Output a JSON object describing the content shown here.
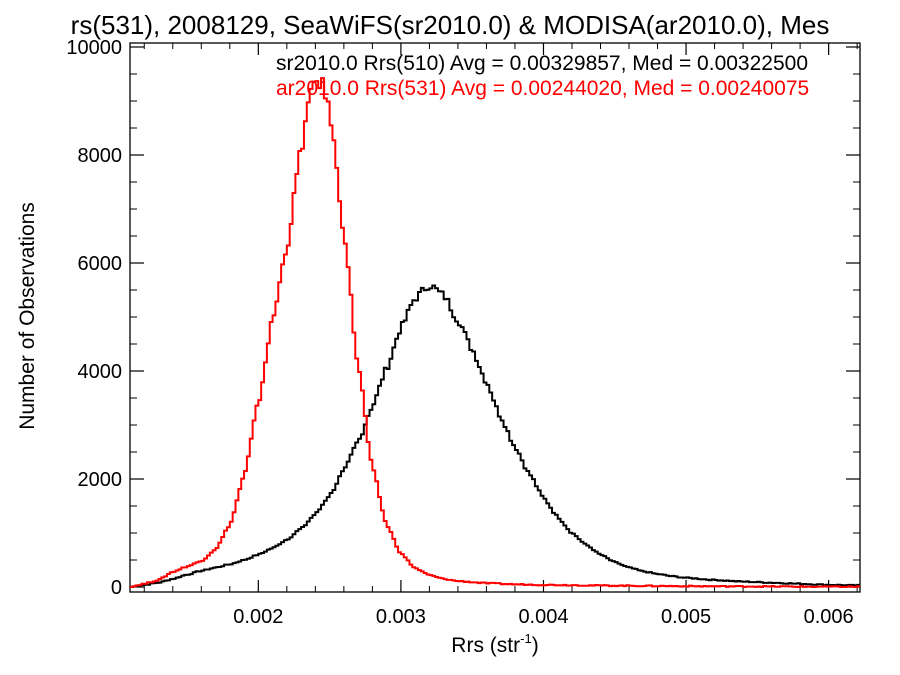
{
  "chart_data": {
    "type": "line",
    "title": "rs(531), 2008129, SeaWiFS(sr2010.0) & MODISA(ar2010.0), Mes",
    "xlabel": "Rrs (str",
    "xlabel_sup": "-1",
    "xlabel_close": ")",
    "ylabel": "Number of Observations",
    "xlim": [
      0.0011,
      0.00622
    ],
    "ylim": [
      0,
      10000
    ],
    "x_ticks": [
      0.002,
      0.003,
      0.004,
      0.005,
      0.006
    ],
    "x_tick_labels": [
      "0.002",
      "0.003",
      "0.004",
      "0.005",
      "0.006"
    ],
    "y_ticks": [
      0,
      2000,
      4000,
      6000,
      8000,
      10000
    ],
    "y_tick_labels": [
      "0",
      "2000",
      "4000",
      "6000",
      "8000",
      "10000"
    ],
    "grid": false,
    "legend": [
      {
        "text": "sr2010.0 Rrs(510) Avg = 0.00329857, Med = 0.00322500",
        "color": "#000000"
      },
      {
        "text": "ar2010.0 Rrs(531) Avg = 0.00244020, Med = 0.00240075",
        "color": "#ff0000"
      }
    ],
    "series": [
      {
        "name": "sr2010.0 Rrs(510)",
        "color": "#000000",
        "style": "step",
        "x": [
          0.0011,
          0.0012,
          0.0013,
          0.0014,
          0.0015,
          0.0016,
          0.0017,
          0.0018,
          0.0019,
          0.002,
          0.0021,
          0.0022,
          0.0023,
          0.0024,
          0.0025,
          0.0026,
          0.0027,
          0.0028,
          0.0029,
          0.003,
          0.0031,
          0.0032,
          0.0033,
          0.0034,
          0.0035,
          0.0036,
          0.0037,
          0.0038,
          0.0039,
          0.004,
          0.0041,
          0.0042,
          0.0043,
          0.0044,
          0.0045,
          0.0046,
          0.0047,
          0.0048,
          0.0049,
          0.005,
          0.0052,
          0.0054,
          0.0056,
          0.0058,
          0.006,
          0.0062
        ],
        "y": [
          0,
          40,
          80,
          150,
          230,
          300,
          360,
          420,
          500,
          600,
          720,
          880,
          1080,
          1350,
          1700,
          2150,
          2700,
          3350,
          4050,
          4800,
          5350,
          5600,
          5400,
          4950,
          4400,
          3800,
          3150,
          2600,
          2100,
          1650,
          1300,
          1000,
          780,
          600,
          460,
          360,
          290,
          240,
          200,
          170,
          130,
          100,
          80,
          60,
          40,
          30
        ]
      },
      {
        "name": "ar2010.0 Rrs(531)",
        "color": "#ff0000",
        "style": "step",
        "x": [
          0.0011,
          0.0012,
          0.0013,
          0.0014,
          0.0015,
          0.0016,
          0.0017,
          0.0018,
          0.0019,
          0.002,
          0.0021,
          0.0022,
          0.0023,
          0.00235,
          0.0024,
          0.00245,
          0.0025,
          0.0026,
          0.0027,
          0.0028,
          0.0029,
          0.003,
          0.0031,
          0.0032,
          0.0033,
          0.0034,
          0.0036,
          0.0038,
          0.004,
          0.0045,
          0.005,
          0.0055,
          0.006,
          0.0062
        ],
        "y": [
          0,
          60,
          130,
          280,
          380,
          480,
          700,
          1150,
          2050,
          3400,
          4950,
          6300,
          8100,
          8900,
          9400,
          9300,
          8800,
          6600,
          4100,
          2200,
          1150,
          620,
          350,
          220,
          150,
          110,
          70,
          50,
          40,
          25,
          15,
          10,
          5,
          5
        ]
      }
    ]
  }
}
